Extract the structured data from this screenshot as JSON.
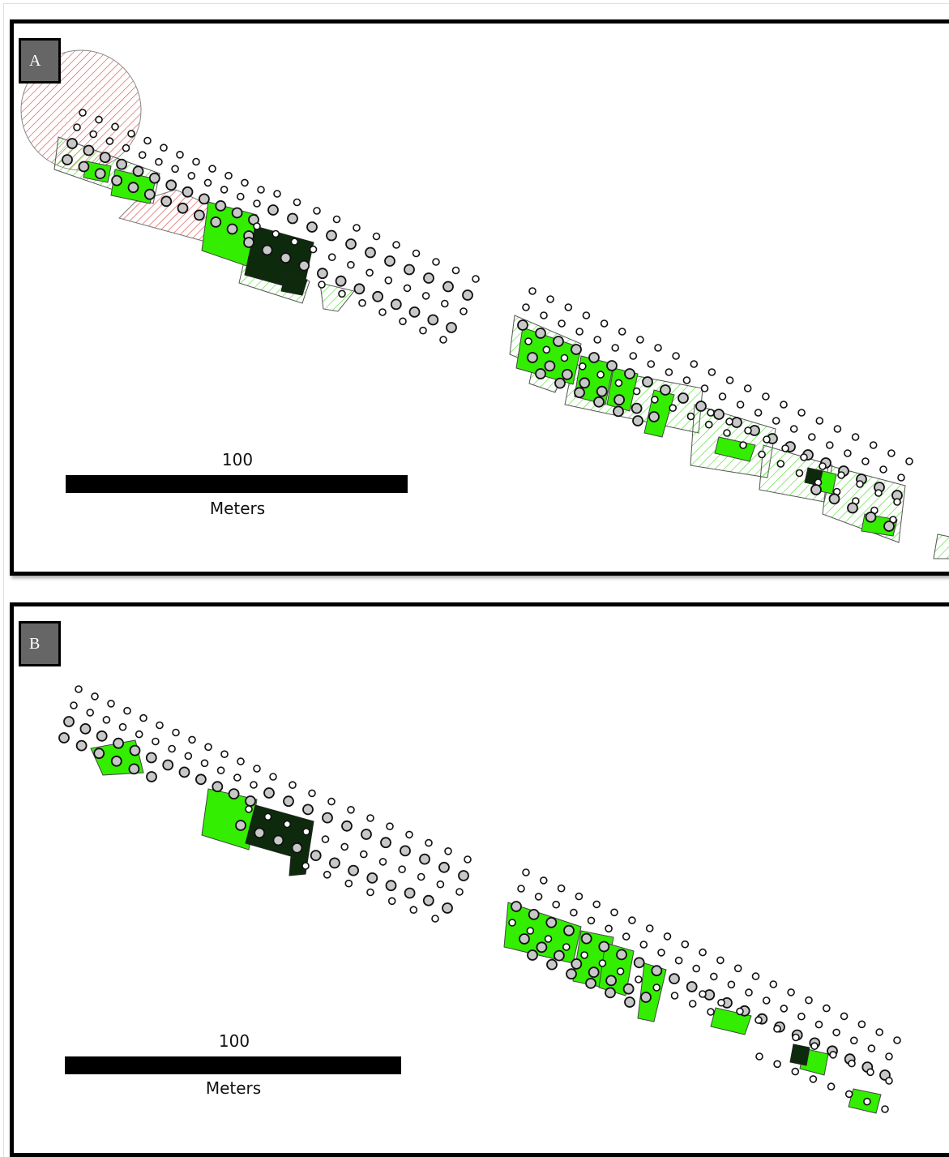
{
  "panels": [
    {
      "label": "A",
      "scale": {
        "distance": "100",
        "unit": "Meters"
      }
    },
    {
      "label": "B",
      "scale": {
        "distance": "100",
        "unit": "Meters"
      }
    }
  ],
  "colors": {
    "selected_green": "#33ee00",
    "core_dark": "#0d2a0d",
    "buffer_red": "#e04040",
    "point_fill": "#c8c8c8"
  }
}
